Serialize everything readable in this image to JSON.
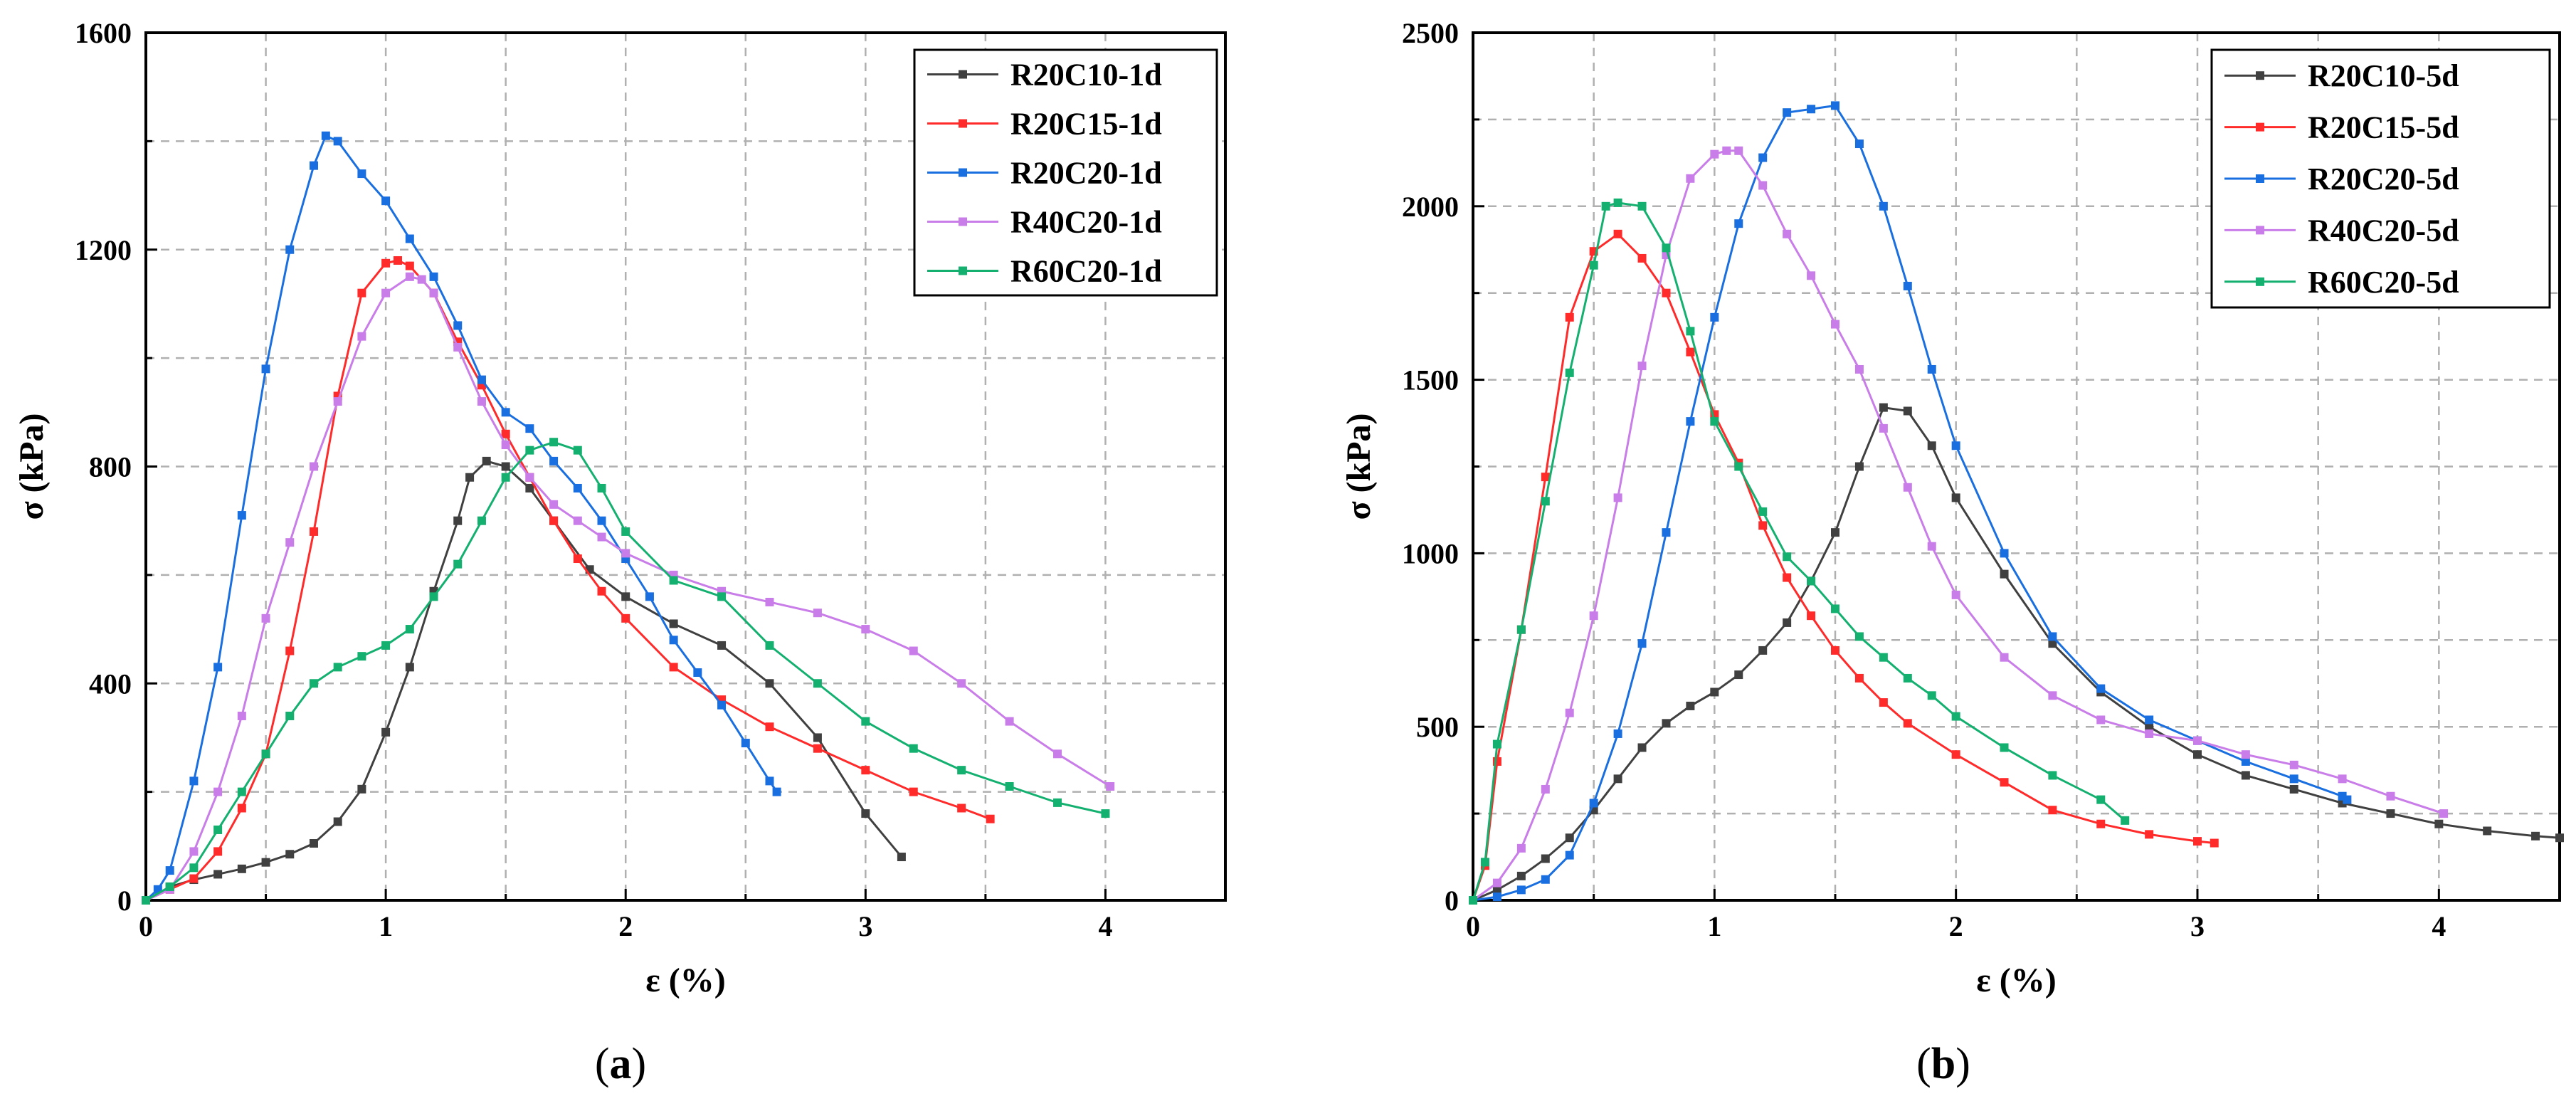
{
  "chart_data": [
    {
      "type": "line",
      "panel_label": "a",
      "xlabel": "ε (%)",
      "ylabel": "σ (kPa)",
      "xlim": [
        0,
        4.5
      ],
      "ylim": [
        0,
        1600
      ],
      "xticks": [
        0,
        1,
        2,
        3,
        4
      ],
      "yticks": [
        0,
        400,
        800,
        1200,
        1600
      ],
      "legend_position": "top-right",
      "grid": true,
      "series": [
        {
          "name": "R20C10-1d",
          "color": "#404040",
          "x": [
            0,
            0.1,
            0.2,
            0.3,
            0.4,
            0.5,
            0.6,
            0.7,
            0.8,
            0.9,
            1.0,
            1.1,
            1.2,
            1.3,
            1.35,
            1.42,
            1.5,
            1.6,
            1.7,
            1.85,
            2.0,
            2.2,
            2.4,
            2.6,
            2.8,
            3.0,
            3.15
          ],
          "y": [
            0,
            25,
            38,
            48,
            58,
            70,
            85,
            105,
            145,
            205,
            310,
            430,
            570,
            700,
            780,
            810,
            800,
            760,
            700,
            610,
            560,
            510,
            470,
            400,
            300,
            160,
            80
          ]
        },
        {
          "name": "R20C15-1d",
          "color": "#ff2a2a",
          "x": [
            0,
            0.1,
            0.2,
            0.3,
            0.4,
            0.5,
            0.6,
            0.7,
            0.8,
            0.9,
            1.0,
            1.05,
            1.1,
            1.2,
            1.3,
            1.4,
            1.5,
            1.6,
            1.7,
            1.8,
            1.9,
            2.0,
            2.2,
            2.4,
            2.6,
            2.8,
            3.0,
            3.2,
            3.4,
            3.52
          ],
          "y": [
            0,
            20,
            40,
            90,
            170,
            270,
            460,
            680,
            930,
            1120,
            1175,
            1180,
            1170,
            1120,
            1030,
            950,
            860,
            780,
            700,
            630,
            570,
            520,
            430,
            370,
            320,
            280,
            240,
            200,
            170,
            150
          ]
        },
        {
          "name": "R20C20-1d",
          "color": "#1a6fe0",
          "x": [
            0,
            0.05,
            0.1,
            0.2,
            0.3,
            0.4,
            0.5,
            0.6,
            0.7,
            0.75,
            0.8,
            0.9,
            1.0,
            1.1,
            1.2,
            1.3,
            1.4,
            1.5,
            1.6,
            1.7,
            1.8,
            1.9,
            2.0,
            2.1,
            2.2,
            2.3,
            2.4,
            2.5,
            2.6,
            2.63
          ],
          "y": [
            0,
            20,
            55,
            220,
            430,
            710,
            980,
            1200,
            1355,
            1410,
            1400,
            1340,
            1290,
            1220,
            1150,
            1060,
            960,
            900,
            870,
            810,
            760,
            700,
            630,
            560,
            480,
            420,
            360,
            290,
            220,
            200
          ]
        },
        {
          "name": "R40C20-1d",
          "color": "#c97de8",
          "x": [
            0,
            0.1,
            0.2,
            0.3,
            0.4,
            0.5,
            0.6,
            0.7,
            0.8,
            0.9,
            1.0,
            1.1,
            1.15,
            1.2,
            1.3,
            1.4,
            1.5,
            1.6,
            1.7,
            1.8,
            1.9,
            2.0,
            2.2,
            2.4,
            2.6,
            2.8,
            3.0,
            3.2,
            3.4,
            3.6,
            3.8,
            4.02
          ],
          "y": [
            0,
            20,
            90,
            200,
            340,
            520,
            660,
            800,
            920,
            1040,
            1120,
            1150,
            1145,
            1120,
            1020,
            920,
            840,
            780,
            730,
            700,
            670,
            640,
            600,
            570,
            550,
            530,
            500,
            460,
            400,
            330,
            270,
            210
          ]
        },
        {
          "name": "R60C20-1d",
          "color": "#14b070",
          "x": [
            0,
            0.1,
            0.2,
            0.3,
            0.4,
            0.5,
            0.6,
            0.7,
            0.8,
            0.9,
            1.0,
            1.1,
            1.2,
            1.3,
            1.4,
            1.5,
            1.6,
            1.7,
            1.8,
            1.9,
            2.0,
            2.2,
            2.4,
            2.6,
            2.8,
            3.0,
            3.2,
            3.4,
            3.6,
            3.8,
            4.0
          ],
          "y": [
            0,
            25,
            60,
            130,
            200,
            270,
            340,
            400,
            430,
            450,
            470,
            500,
            560,
            620,
            700,
            780,
            830,
            845,
            830,
            760,
            680,
            590,
            560,
            470,
            400,
            330,
            280,
            240,
            210,
            180,
            160
          ]
        }
      ]
    },
    {
      "type": "line",
      "panel_label": "b",
      "xlabel": "ε (%)",
      "ylabel": "σ (kPa)",
      "xlim": [
        0,
        4.5
      ],
      "ylim": [
        0,
        2500
      ],
      "xticks": [
        0,
        1,
        2,
        3,
        4
      ],
      "yticks": [
        0,
        500,
        1000,
        1500,
        2000,
        2500
      ],
      "legend_position": "top-right",
      "grid": true,
      "series": [
        {
          "name": "R20C10-5d",
          "color": "#404040",
          "x": [
            0,
            0.1,
            0.2,
            0.3,
            0.4,
            0.5,
            0.6,
            0.7,
            0.8,
            0.9,
            1.0,
            1.1,
            1.2,
            1.3,
            1.4,
            1.5,
            1.6,
            1.7,
            1.8,
            1.9,
            2.0,
            2.2,
            2.4,
            2.6,
            2.8,
            3.0,
            3.2,
            3.4,
            3.6,
            3.8,
            4.0,
            4.2,
            4.4,
            4.5
          ],
          "y": [
            0,
            30,
            70,
            120,
            180,
            260,
            350,
            440,
            510,
            560,
            600,
            650,
            720,
            800,
            920,
            1060,
            1250,
            1420,
            1410,
            1310,
            1160,
            940,
            740,
            600,
            500,
            420,
            360,
            320,
            280,
            250,
            220,
            200,
            185,
            180
          ]
        },
        {
          "name": "R20C15-5d",
          "color": "#ff2a2a",
          "x": [
            0,
            0.05,
            0.1,
            0.2,
            0.3,
            0.4,
            0.5,
            0.6,
            0.7,
            0.8,
            0.9,
            1.0,
            1.1,
            1.2,
            1.3,
            1.4,
            1.5,
            1.6,
            1.7,
            1.8,
            2.0,
            2.2,
            2.4,
            2.6,
            2.8,
            3.0,
            3.07
          ],
          "y": [
            0,
            100,
            400,
            780,
            1220,
            1680,
            1870,
            1920,
            1850,
            1750,
            1580,
            1400,
            1260,
            1080,
            930,
            820,
            720,
            640,
            570,
            510,
            420,
            340,
            260,
            220,
            190,
            170,
            165
          ]
        },
        {
          "name": "R20C20-5d",
          "color": "#1a6fe0",
          "x": [
            0,
            0.1,
            0.2,
            0.3,
            0.4,
            0.5,
            0.6,
            0.7,
            0.8,
            0.9,
            1.0,
            1.1,
            1.2,
            1.3,
            1.4,
            1.5,
            1.6,
            1.7,
            1.8,
            1.9,
            2.0,
            2.2,
            2.4,
            2.6,
            2.8,
            3.0,
            3.2,
            3.4,
            3.6,
            3.62
          ],
          "y": [
            0,
            10,
            30,
            60,
            130,
            280,
            480,
            740,
            1060,
            1380,
            1680,
            1950,
            2140,
            2270,
            2280,
            2290,
            2180,
            2000,
            1770,
            1530,
            1310,
            1000,
            760,
            610,
            520,
            460,
            400,
            350,
            300,
            290
          ]
        },
        {
          "name": "R40C20-5d",
          "color": "#c97de8",
          "x": [
            0,
            0.1,
            0.2,
            0.3,
            0.4,
            0.5,
            0.6,
            0.7,
            0.8,
            0.9,
            1.0,
            1.05,
            1.1,
            1.2,
            1.3,
            1.4,
            1.5,
            1.6,
            1.7,
            1.8,
            1.9,
            2.0,
            2.2,
            2.4,
            2.6,
            2.8,
            3.0,
            3.2,
            3.4,
            3.6,
            3.8,
            4.02
          ],
          "y": [
            0,
            50,
            150,
            320,
            540,
            820,
            1160,
            1540,
            1860,
            2080,
            2150,
            2160,
            2160,
            2060,
            1920,
            1800,
            1660,
            1530,
            1360,
            1190,
            1020,
            880,
            700,
            590,
            520,
            480,
            460,
            420,
            390,
            350,
            300,
            250
          ]
        },
        {
          "name": "R60C20-5d",
          "color": "#14b070",
          "x": [
            0,
            0.05,
            0.1,
            0.2,
            0.3,
            0.4,
            0.5,
            0.55,
            0.6,
            0.7,
            0.8,
            0.9,
            1.0,
            1.1,
            1.2,
            1.3,
            1.4,
            1.5,
            1.6,
            1.7,
            1.8,
            1.9,
            2.0,
            2.2,
            2.4,
            2.6,
            2.7
          ],
          "y": [
            0,
            110,
            450,
            780,
            1150,
            1520,
            1830,
            2000,
            2010,
            2000,
            1880,
            1640,
            1380,
            1250,
            1120,
            990,
            920,
            840,
            760,
            700,
            640,
            590,
            530,
            440,
            360,
            290,
            230
          ]
        }
      ]
    }
  ]
}
